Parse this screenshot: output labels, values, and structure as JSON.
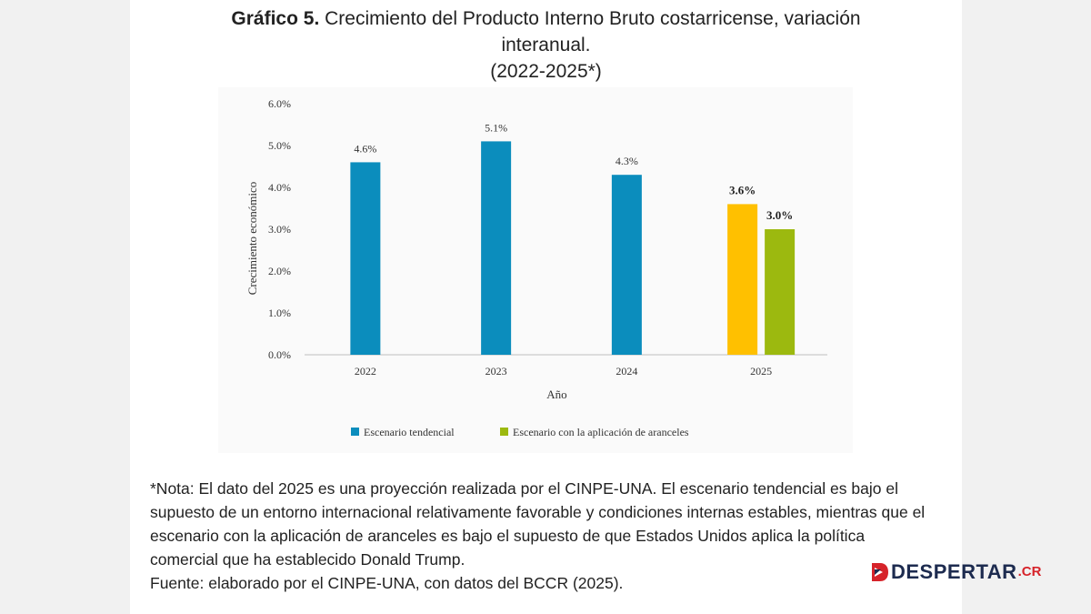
{
  "header": {
    "title_label": "Gráfico 5.",
    "title_text": "Crecimiento del Producto Interno Bruto costarricense, variación interanual.",
    "title_period": "(2022-2025*)"
  },
  "chart_data": {
    "type": "bar",
    "categories": [
      "2022",
      "2023",
      "2024",
      "2025"
    ],
    "series": [
      {
        "name": "Escenario tendencial",
        "values": [
          4.6,
          5.1,
          4.3,
          null
        ],
        "color": "#0b8dbd"
      },
      {
        "name": "Escenario con la aplicación de aranceles",
        "values": [
          null,
          null,
          null,
          3.0
        ],
        "color": "#9cb90f"
      }
    ],
    "highlight": {
      "category": "2025",
      "series": "Escenario tendencial",
      "color": "#ffc000"
    },
    "data_labels": {
      "2022": "4.6%",
      "2023": "5.1%",
      "2024": "4.3%",
      "2025_tendencial": "3.6%",
      "2025_aranceles": "3.0%"
    },
    "xlabel": "Año",
    "ylabel": "Crecimiento económico",
    "ylim": [
      0,
      6
    ],
    "yticks": [
      "0.0%",
      "1.0%",
      "2.0%",
      "3.0%",
      "4.0%",
      "5.0%",
      "6.0%"
    ],
    "grid": false,
    "legend_position": "bottom"
  },
  "chart_values_2025_tendencial": 3.6,
  "note": {
    "text": "*Nota: El dato del 2025 es una proyección realizada por el CINPE-UNA. El escenario tendencial es bajo el supuesto de un entorno internacional relativamente favorable y condiciones internas estables, mientras que el escenario con la aplicación de aranceles es bajo el supuesto de que Estados Unidos aplica la política comercial que ha establecido Donald Trump.",
    "source": "Fuente: elaborado por el CINPE-UNA, con datos del BCCR (2025)."
  },
  "logo": {
    "word": "DESPERTAR",
    "tld": ".CR",
    "icon": "d-flag-icon",
    "colors": {
      "navy": "#1d2b4f",
      "red": "#d6232a"
    }
  }
}
